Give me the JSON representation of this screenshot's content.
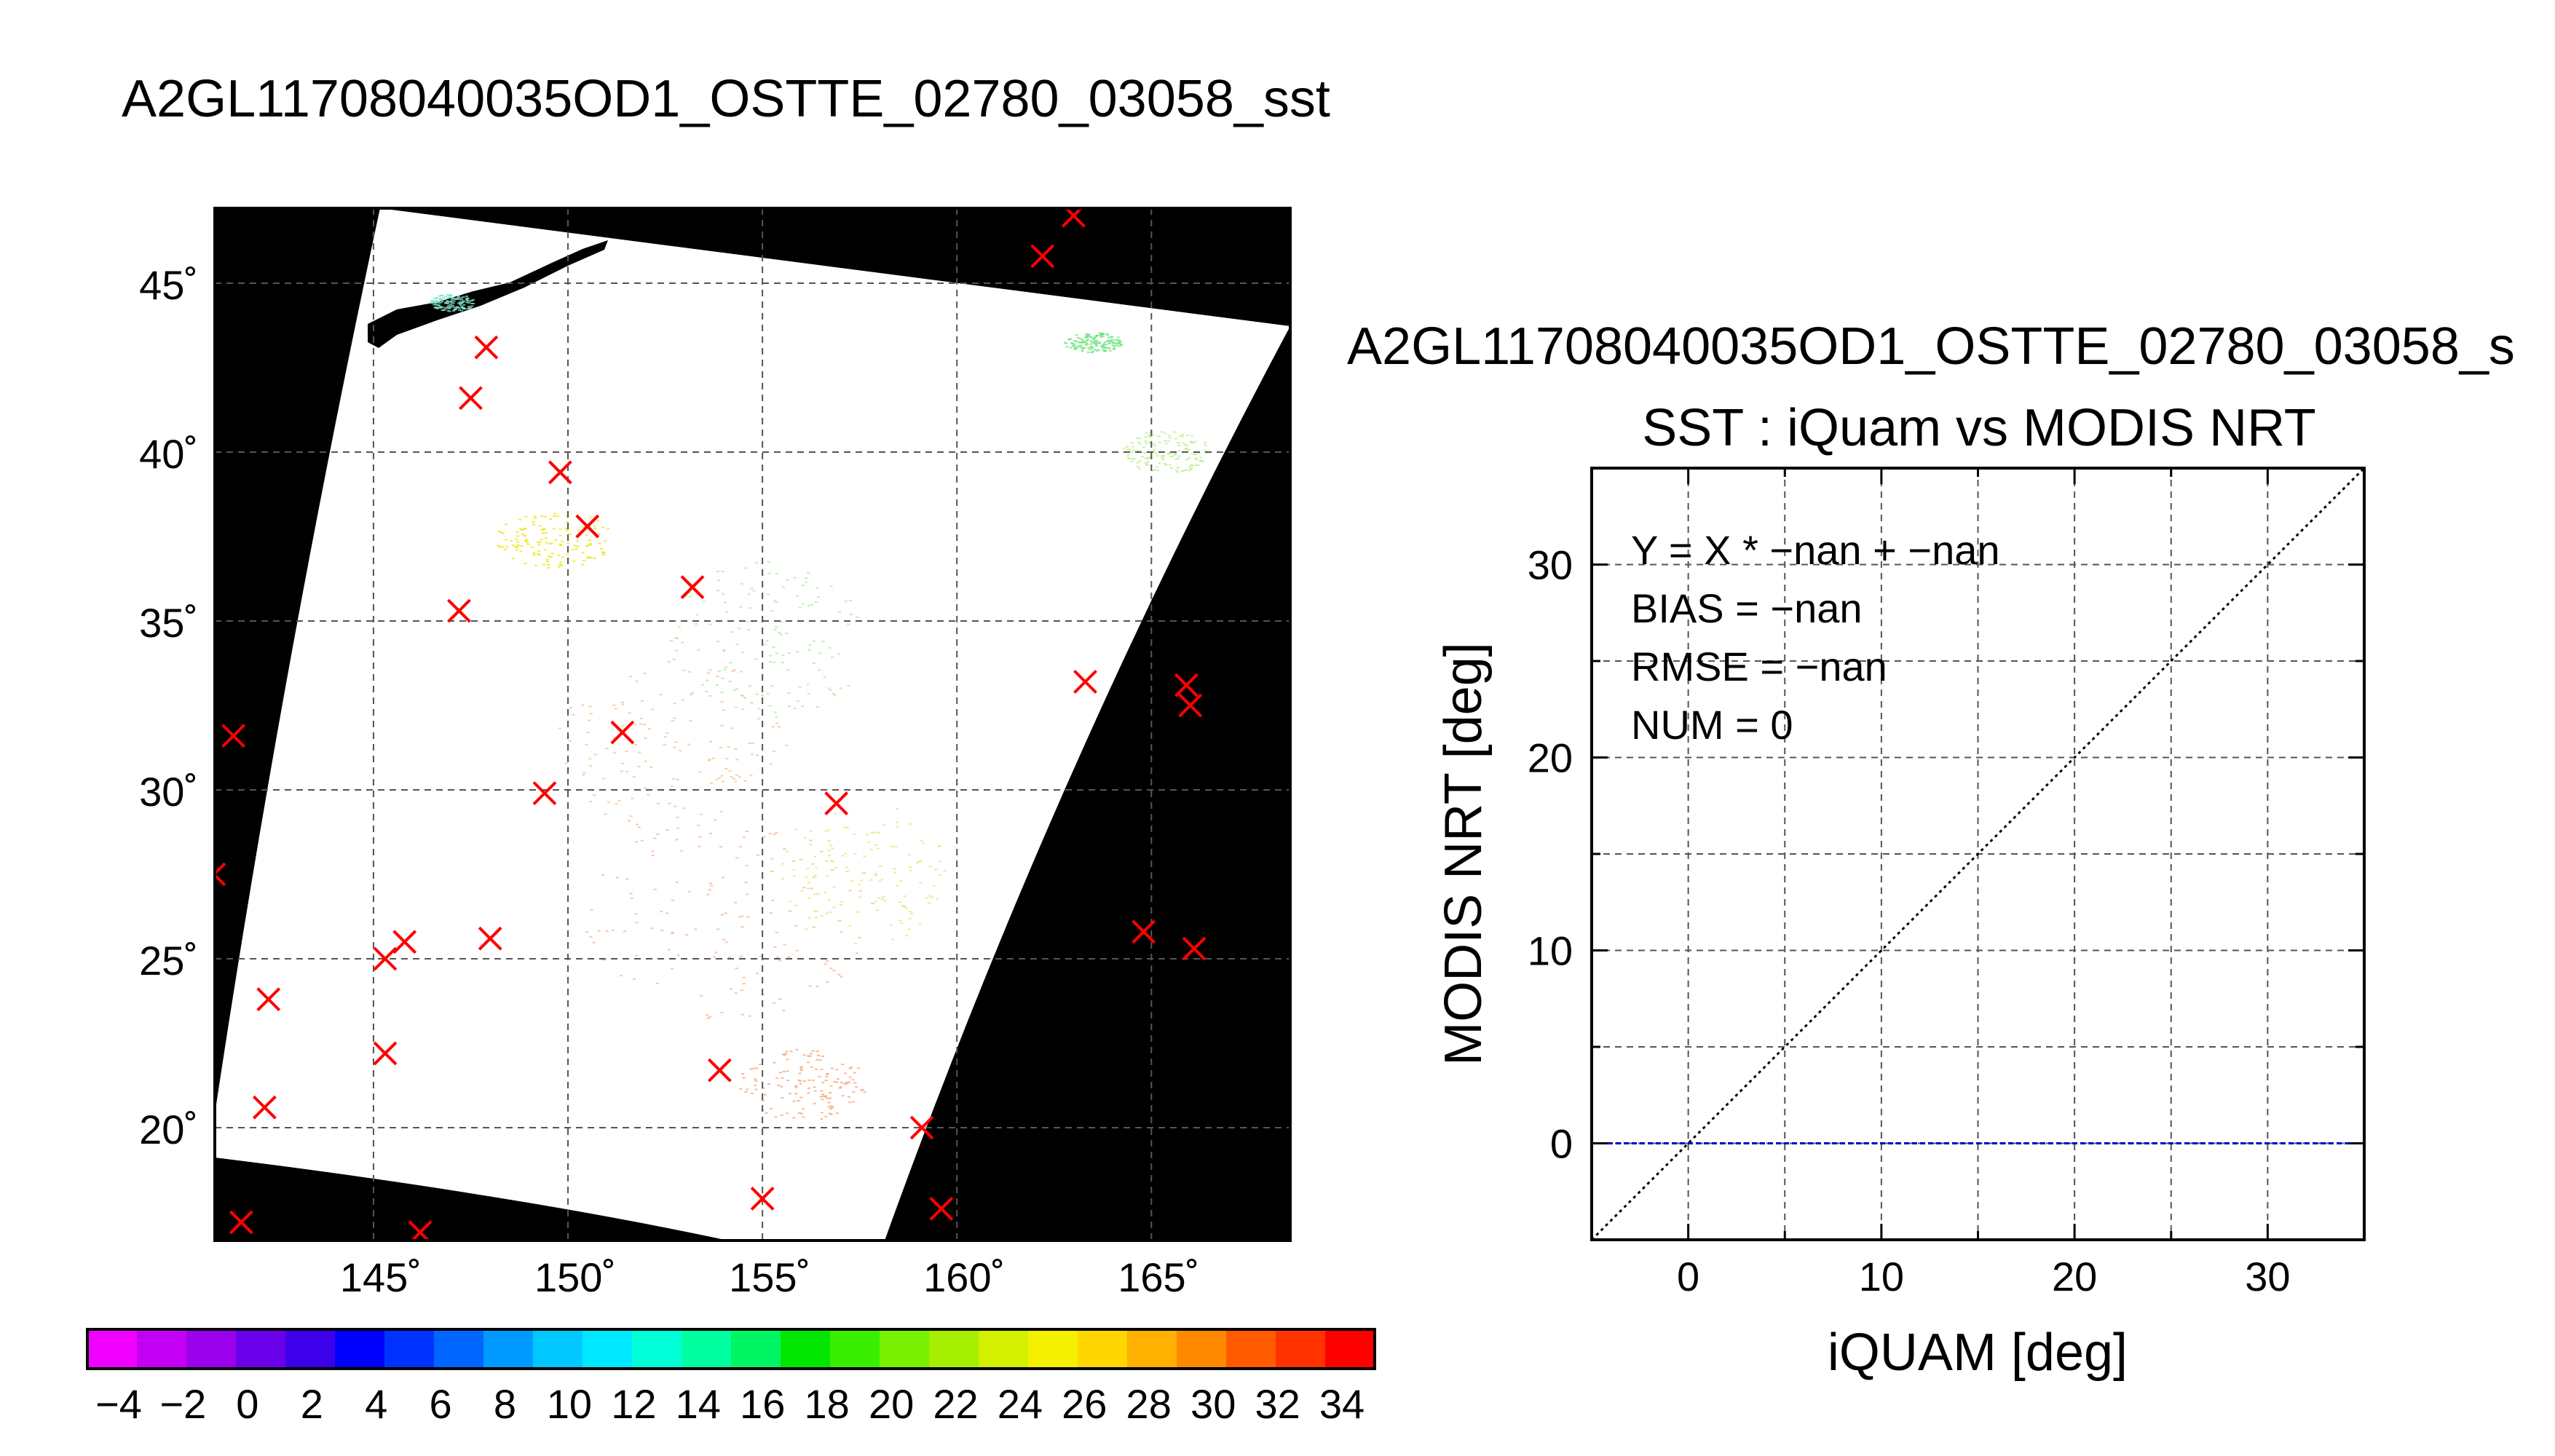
{
  "map_title": "A2GL11708040035OD1_OSTTE_02780_03058_sst",
  "map": {
    "lon_ticks": [
      "145˚",
      "150˚",
      "155˚",
      "160˚",
      "165˚"
    ],
    "lat_ticks": [
      "20˚",
      "25˚",
      "30˚",
      "35˚",
      "40˚",
      "45˚"
    ],
    "matchup_markers": [
      {
        "lon": 163.0,
        "lat": 47.0
      },
      {
        "lon": 162.2,
        "lat": 45.8
      },
      {
        "lon": 147.9,
        "lat": 43.1
      },
      {
        "lon": 147.5,
        "lat": 41.6
      },
      {
        "lon": 149.8,
        "lat": 39.4
      },
      {
        "lon": 150.5,
        "lat": 37.8
      },
      {
        "lon": 153.2,
        "lat": 36.0
      },
      {
        "lon": 147.2,
        "lat": 35.3
      },
      {
        "lon": 163.3,
        "lat": 33.2
      },
      {
        "lon": 165.9,
        "lat": 33.1
      },
      {
        "lon": 166.0,
        "lat": 32.5
      },
      {
        "lon": 141.4,
        "lat": 31.6
      },
      {
        "lon": 151.4,
        "lat": 31.7
      },
      {
        "lon": 149.4,
        "lat": 29.9
      },
      {
        "lon": 156.9,
        "lat": 29.6
      },
      {
        "lon": 140.9,
        "lat": 27.5
      },
      {
        "lon": 145.8,
        "lat": 25.5
      },
      {
        "lon": 145.3,
        "lat": 25.0
      },
      {
        "lon": 148.0,
        "lat": 25.6
      },
      {
        "lon": 164.8,
        "lat": 25.8
      },
      {
        "lon": 166.1,
        "lat": 25.3
      },
      {
        "lon": 142.3,
        "lat": 23.8
      },
      {
        "lon": 145.3,
        "lat": 22.2
      },
      {
        "lon": 153.9,
        "lat": 21.7
      },
      {
        "lon": 142.2,
        "lat": 20.6
      },
      {
        "lon": 159.1,
        "lat": 20.0
      },
      {
        "lon": 155.0,
        "lat": 17.9
      },
      {
        "lon": 159.6,
        "lat": 17.6
      },
      {
        "lon": 141.6,
        "lat": 17.2
      },
      {
        "lon": 146.2,
        "lat": 16.9
      }
    ]
  },
  "colorbar": {
    "labels": [
      "−4",
      "−2",
      "0",
      "2",
      "4",
      "6",
      "8",
      "10",
      "12",
      "14",
      "16",
      "18",
      "20",
      "22",
      "24",
      "26",
      "28",
      "30",
      "32",
      "34"
    ],
    "colors": [
      "#f000ff",
      "#c400f4",
      "#9a00ea",
      "#6a00ea",
      "#3c00ea",
      "#0000ff",
      "#0033ff",
      "#0066ff",
      "#0099ff",
      "#00c8ff",
      "#00e8ff",
      "#00ffd6",
      "#00ffa0",
      "#00f564",
      "#00e600",
      "#3aee00",
      "#78f000",
      "#a6ef00",
      "#d2f000",
      "#f5ef00",
      "#ffd600",
      "#ffb000",
      "#ff8a00",
      "#ff5a00",
      "#ff3200",
      "#ff0000"
    ]
  },
  "scatter_title": "A2GL11708040035OD1_OSTTE_02780_03058_s",
  "chart_data": {
    "type": "scatter",
    "title": "SST : iQuam vs MODIS NRT",
    "xlabel": "iQUAM [deg]",
    "ylabel": "MODIS NRT [deg]",
    "xlim": [
      -5,
      35
    ],
    "ylim": [
      -5,
      35
    ],
    "x_ticks": [
      0,
      10,
      20,
      30
    ],
    "y_ticks": [
      0,
      10,
      20,
      30
    ],
    "points": [],
    "grid": true,
    "reference_lines": [
      {
        "kind": "identity",
        "style": "dotted",
        "color": "#000000"
      },
      {
        "kind": "horizontal",
        "y": 0,
        "style": "dashed",
        "color": "#0000cc"
      }
    ],
    "annotations": [
      "Y = X * −nan + −nan",
      "BIAS = −nan",
      "RMSE = −nan",
      "NUM = 0"
    ]
  }
}
